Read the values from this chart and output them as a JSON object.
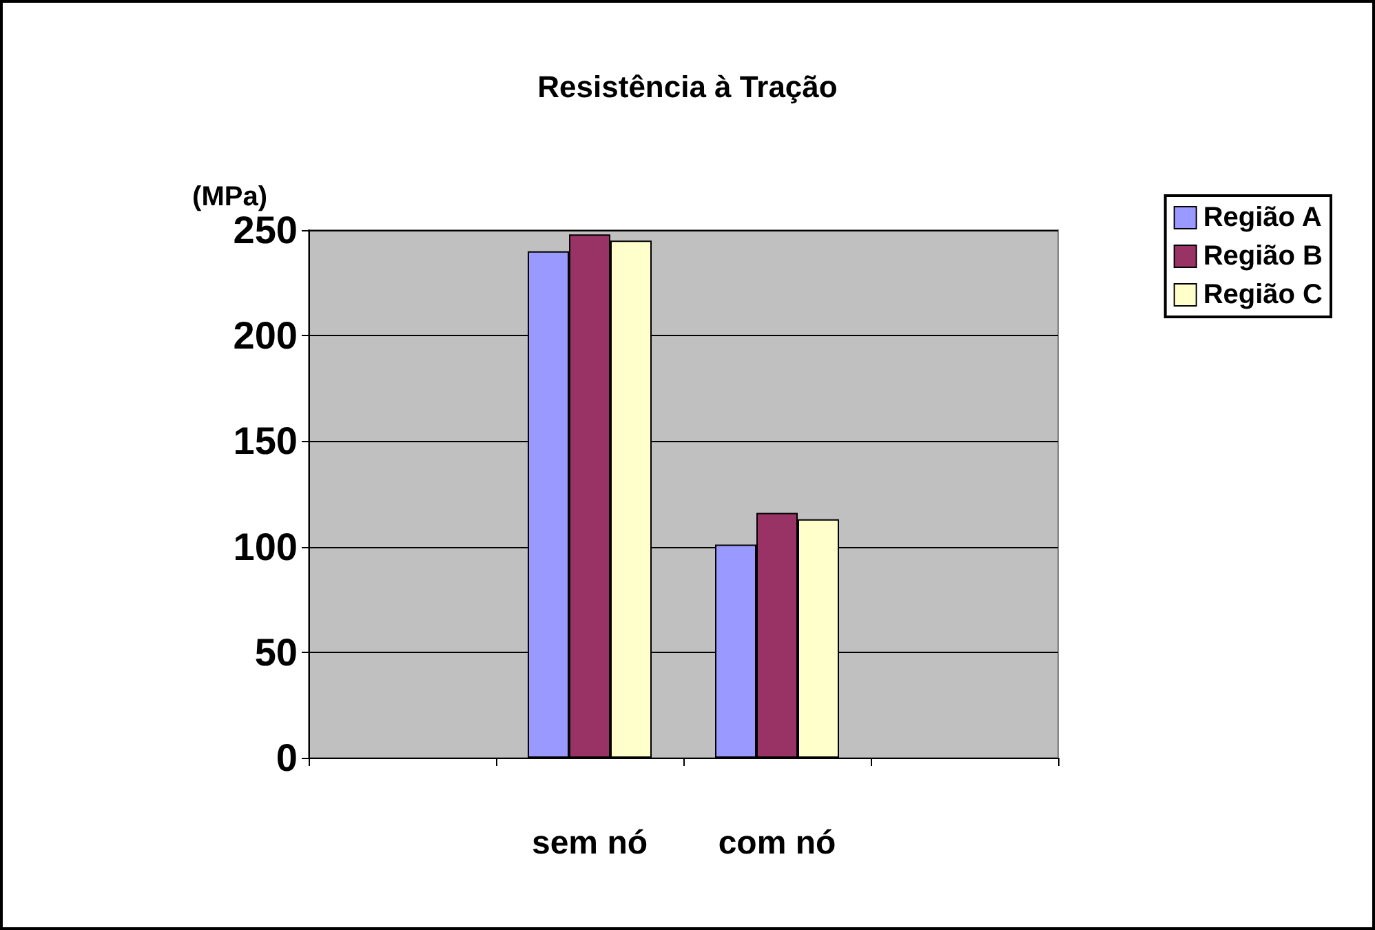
{
  "chart_data": {
    "type": "bar",
    "title": "Resistência à Tração",
    "ylabel": "(MPa)",
    "categories": [
      null,
      "sem nó",
      "com nó",
      null
    ],
    "series": [
      {
        "name": "Região A",
        "color": "#9999ff",
        "values": [
          null,
          240,
          101,
          null
        ]
      },
      {
        "name": "Região B",
        "color": "#993366",
        "values": [
          null,
          248,
          116,
          null
        ]
      },
      {
        "name": "Região C",
        "color": "#ffffcc",
        "values": [
          null,
          245,
          113,
          null
        ]
      }
    ],
    "ylim": [
      0,
      250
    ],
    "yticks": [
      0,
      50,
      100,
      150,
      200,
      250
    ],
    "grid": "y",
    "legend": "right"
  }
}
